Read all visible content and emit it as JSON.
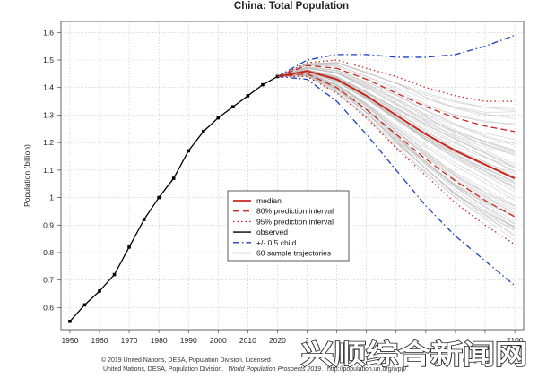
{
  "chart_data": {
    "type": "line",
    "title": "China: Total Population",
    "xlabel": "",
    "ylabel": "Population (billion)",
    "xlim": [
      1947,
      2103
    ],
    "ylim": [
      0.52,
      1.64
    ],
    "x_ticks": [
      1950,
      1960,
      1970,
      1980,
      1990,
      2000,
      2010,
      2020,
      2030,
      2040,
      2050,
      2060,
      2070,
      2080,
      2090,
      2100
    ],
    "x_tick_labels": [
      "1950",
      "1960",
      "1970",
      "1980",
      "1990",
      "2000",
      "2010",
      "2020",
      "",
      "",
      "",
      "",
      "",
      "",
      "",
      "2100"
    ],
    "x_tick_labels_partial": {
      "2030": "2"
    },
    "y_ticks": [
      0.6,
      0.7,
      0.8,
      0.9,
      1.0,
      1.1,
      1.2,
      1.3,
      1.4,
      1.5,
      1.6
    ],
    "y_tick_labels": [
      "0.6",
      "0.7",
      "0.8",
      "0.9",
      "1",
      "1.1",
      "1.2",
      "1.3",
      "1.4",
      "1.5",
      "1.6"
    ],
    "grid": true,
    "legend_placement": "center",
    "series": [
      {
        "name": "observed",
        "role": "observed",
        "color": "#000000",
        "style": "solid-points",
        "x": [
          1950,
          1955,
          1960,
          1965,
          1970,
          1975,
          1980,
          1985,
          1990,
          1995,
          2000,
          2005,
          2010,
          2015,
          2020
        ],
        "y": [
          0.55,
          0.61,
          0.66,
          0.72,
          0.82,
          0.92,
          1.0,
          1.07,
          1.17,
          1.24,
          1.29,
          1.33,
          1.37,
          1.41,
          1.44
        ]
      },
      {
        "name": "median",
        "role": "median",
        "color": "#c8281e",
        "style": "solid",
        "x": [
          2020,
          2030,
          2040,
          2050,
          2060,
          2070,
          2080,
          2090,
          2100
        ],
        "y": [
          1.44,
          1.46,
          1.43,
          1.37,
          1.3,
          1.23,
          1.17,
          1.12,
          1.07
        ]
      },
      {
        "name": "80% prediction interval",
        "role": "pi80-upper",
        "color": "#c8281e",
        "style": "dashed",
        "x": [
          2020,
          2030,
          2040,
          2050,
          2060,
          2070,
          2080,
          2090,
          2100
        ],
        "y": [
          1.44,
          1.48,
          1.47,
          1.43,
          1.38,
          1.33,
          1.29,
          1.26,
          1.24
        ]
      },
      {
        "name": "80% prediction interval",
        "role": "pi80-lower",
        "color": "#c8281e",
        "style": "dashed",
        "x": [
          2020,
          2030,
          2040,
          2050,
          2060,
          2070,
          2080,
          2090,
          2100
        ],
        "y": [
          1.44,
          1.45,
          1.4,
          1.32,
          1.23,
          1.14,
          1.06,
          0.99,
          0.93
        ]
      },
      {
        "name": "95% prediction interval",
        "role": "pi95-upper",
        "color": "#c8281e",
        "style": "dotted",
        "x": [
          2020,
          2030,
          2040,
          2050,
          2060,
          2070,
          2080,
          2090,
          2100
        ],
        "y": [
          1.44,
          1.49,
          1.5,
          1.47,
          1.44,
          1.4,
          1.37,
          1.35,
          1.35
        ]
      },
      {
        "name": "95% prediction interval",
        "role": "pi95-lower",
        "color": "#c8281e",
        "style": "dotted",
        "x": [
          2020,
          2030,
          2040,
          2050,
          2060,
          2070,
          2080,
          2090,
          2100
        ],
        "y": [
          1.44,
          1.44,
          1.38,
          1.29,
          1.18,
          1.08,
          0.98,
          0.9,
          0.83
        ]
      },
      {
        "name": "+/- 0.5 child",
        "role": "child-upper",
        "color": "#1c3fc2",
        "style": "dashdot",
        "x": [
          2020,
          2030,
          2040,
          2050,
          2060,
          2070,
          2080,
          2090,
          2100
        ],
        "y": [
          1.44,
          1.5,
          1.52,
          1.52,
          1.51,
          1.51,
          1.52,
          1.55,
          1.59
        ]
      },
      {
        "name": "+/- 0.5 child",
        "role": "child-lower",
        "color": "#1c3fc2",
        "style": "dashdot",
        "x": [
          2020,
          2030,
          2040,
          2050,
          2060,
          2070,
          2080,
          2090,
          2100
        ],
        "y": [
          1.44,
          1.43,
          1.35,
          1.23,
          1.1,
          0.97,
          0.86,
          0.77,
          0.68
        ]
      }
    ],
    "sample_trajectories": {
      "name": "60 sample trajectories",
      "color": "#bdbdbd",
      "count": 60
    },
    "legend": [
      {
        "label": "median",
        "color": "#c8281e",
        "style": "solid"
      },
      {
        "label": "80% prediction interval",
        "color": "#c8281e",
        "style": "dashed"
      },
      {
        "label": "95% prediction interval",
        "color": "#c8281e",
        "style": "dotted"
      },
      {
        "label": "observed",
        "color": "#000000",
        "style": "solid"
      },
      {
        "label": "+/- 0.5 child",
        "color": "#1c3fc2",
        "style": "dashdot"
      },
      {
        "label": "60 sample trajectories",
        "color": "#bdbdbd",
        "style": "solid"
      }
    ]
  },
  "credit": {
    "line1": "© 2019 United Nations, DESA, Population Division. Licensed",
    "line1_tail": "n.org/wpp/",
    "line2_prefix": "United Nations, DESA, Population Division.",
    "line2_italic": "World Population Prospects 2019.",
    "line2_suffix": "http://population.un.org/wpp/"
  },
  "watermark": {
    "text": "兴顺综合新闻网"
  }
}
